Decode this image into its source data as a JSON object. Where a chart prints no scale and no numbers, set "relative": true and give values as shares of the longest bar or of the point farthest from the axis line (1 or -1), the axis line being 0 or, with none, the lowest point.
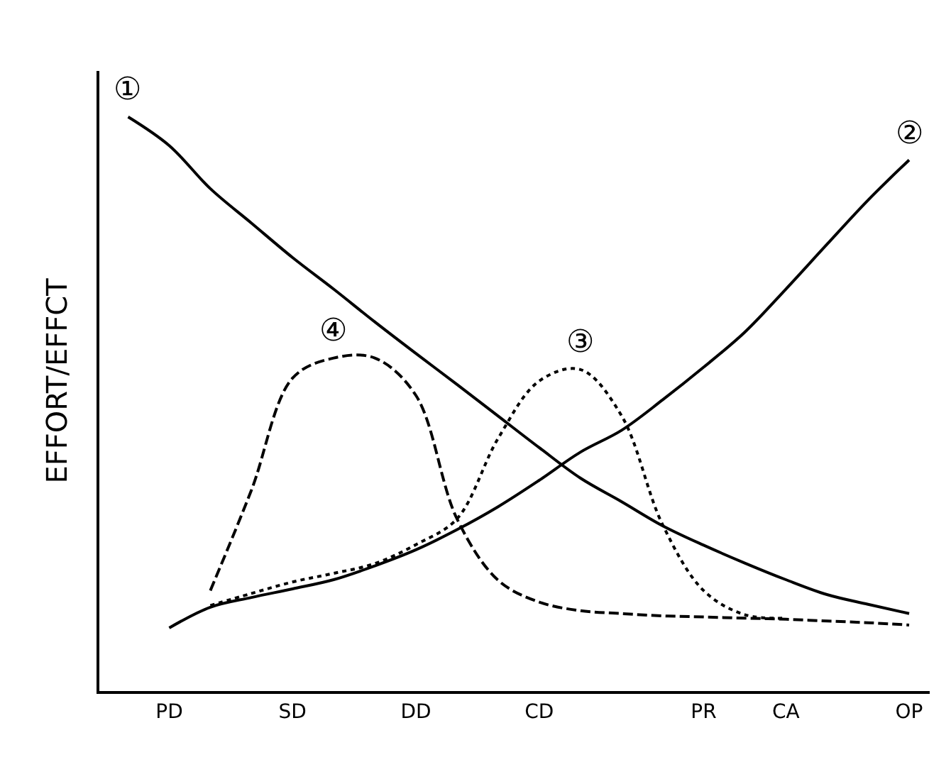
{
  "chart_data": {
    "type": "line",
    "relative": true,
    "ylabel": "EFFORT/EFFCT",
    "categories": [
      null,
      "PD",
      null,
      null,
      "SD",
      null,
      null,
      "DD",
      null,
      null,
      "CD",
      null,
      null,
      null,
      "PR",
      null,
      "CA",
      null,
      null,
      "OP"
    ],
    "tick_labels": "x",
    "legend": false,
    "marker": "none",
    "series": [
      {
        "name": "①",
        "color": "#000000",
        "line_style": "solid",
        "values": [
          1.0,
          0.95,
          0.875,
          0.815,
          0.755,
          0.7,
          0.643,
          0.588,
          0.534,
          0.479,
          0.424,
          0.371,
          0.33,
          0.288,
          0.254,
          0.223,
          0.194,
          0.168,
          0.151,
          0.135
        ]
      },
      {
        "name": "②",
        "color": "#000000",
        "line_style": "solid",
        "values": [
          null,
          0.11,
          0.146,
          0.163,
          0.178,
          0.194,
          0.218,
          0.246,
          0.281,
          0.321,
          0.367,
          0.416,
          0.454,
          0.507,
          0.564,
          0.625,
          0.7,
          0.778,
          0.855,
          0.925
        ]
      },
      {
        "name": "③",
        "color": "#000000",
        "line_style": "dotted",
        "values": [
          null,
          null,
          0.149,
          0.17,
          0.19,
          0.205,
          0.222,
          0.255,
          0.3,
          0.44,
          0.54,
          0.56,
          0.48,
          0.29,
          0.175,
          0.133,
          0.127,
          null,
          null,
          null
        ]
      },
      {
        "name": "④",
        "color": "#000000",
        "line_style": "dashed",
        "values": [
          null,
          null,
          0.175,
          0.35,
          0.545,
          0.58,
          0.58,
          0.515,
          0.3,
          0.193,
          0.155,
          0.14,
          0.135,
          0.131,
          0.129,
          0.127,
          0.125,
          0.122,
          0.119,
          0.115
        ]
      }
    ]
  }
}
